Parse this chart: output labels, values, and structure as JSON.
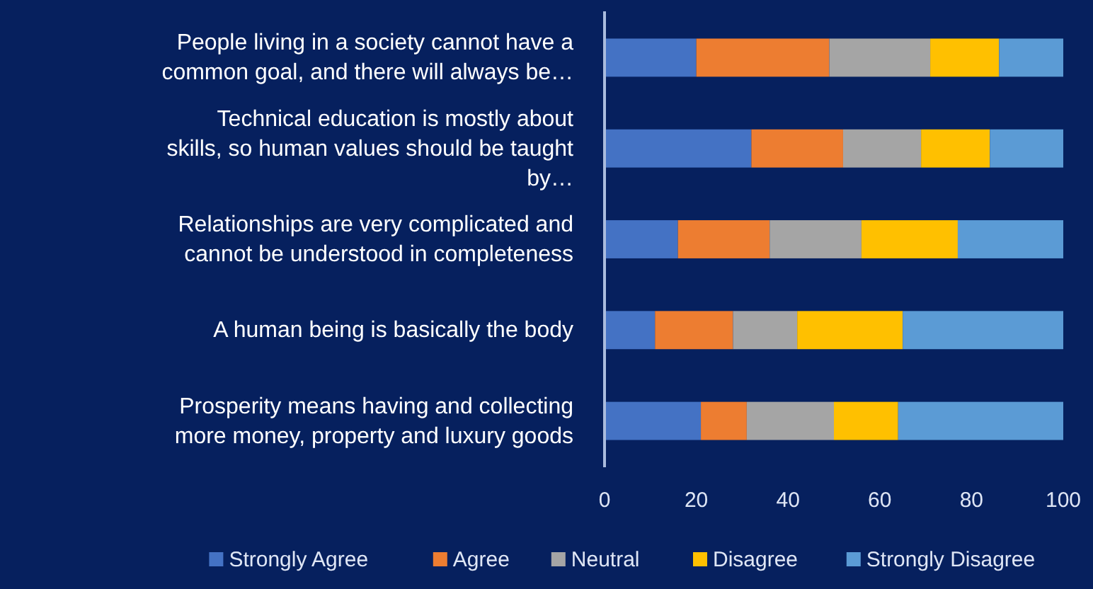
{
  "chart_data": {
    "type": "bar",
    "orientation": "horizontal",
    "stacked": true,
    "categories": [
      "People living in a society cannot have a common goal, and there will always be…",
      "Technical education is mostly about skills, so human values should be taught by…",
      "Relationships are very complicated and cannot be understood in completeness",
      "A human being is basically the body",
      "Prosperity means having and collecting more money, property and luxury goods"
    ],
    "series": [
      {
        "name": "Strongly Agree",
        "color": "#4472c4",
        "values": [
          20,
          32,
          16,
          11,
          21
        ]
      },
      {
        "name": "Agree",
        "color": "#ed7d31",
        "values": [
          29,
          20,
          20,
          17,
          10
        ]
      },
      {
        "name": "Neutral",
        "color": "#a5a5a5",
        "values": [
          22,
          17,
          20,
          14,
          19
        ]
      },
      {
        "name": "Disagree",
        "color": "#ffc000",
        "values": [
          15,
          15,
          21,
          23,
          14
        ]
      },
      {
        "name": "Strongly Disagree",
        "color": "#5b9bd5",
        "values": [
          14,
          16,
          23,
          35,
          36
        ]
      }
    ],
    "xlim": [
      0,
      100
    ],
    "xticks": [
      0,
      20,
      40,
      60,
      80,
      100
    ],
    "grid": false,
    "legend": "bottom"
  }
}
